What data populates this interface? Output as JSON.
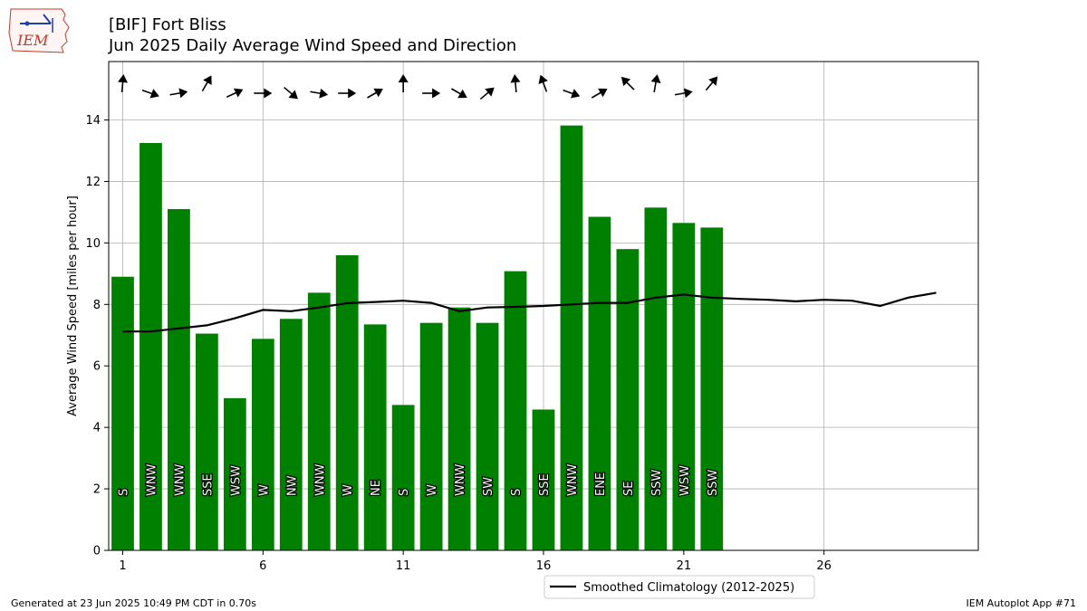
{
  "logo": {
    "text": "IEM",
    "icon": "iem-iowa-state-logo-icon"
  },
  "header": {
    "title": "[BIF] Fort Bliss",
    "subtitle": "Jun 2025 Daily Average Wind Speed and Direction"
  },
  "footer": {
    "left": "Generated at 23 Jun 2025 10:49 PM CDT in 0.70s",
    "right": "IEM Autoplot App #71"
  },
  "colors": {
    "bars": "#008000",
    "climatology_line": "#000000",
    "grid": "#b0b0b0",
    "arrows": "#000000"
  },
  "chart_data": {
    "type": "bar",
    "x": [
      1,
      2,
      3,
      4,
      5,
      6,
      7,
      8,
      9,
      10,
      11,
      12,
      13,
      14,
      15,
      16,
      17,
      18,
      19,
      20,
      21,
      22
    ],
    "values": [
      8.9,
      13.25,
      11.1,
      7.05,
      4.95,
      6.88,
      7.53,
      8.38,
      9.6,
      7.35,
      4.73,
      7.4,
      7.9,
      7.4,
      9.08,
      4.58,
      13.82,
      10.85,
      9.8,
      11.15,
      10.65,
      10.5
    ],
    "directions": [
      "S",
      "WNW",
      "WNW",
      "SSE",
      "WSW",
      "W",
      "NW",
      "WNW",
      "W",
      "NE",
      "S",
      "W",
      "WNW",
      "SW",
      "S",
      "SSE",
      "WNW",
      "ENE",
      "SE",
      "SSW",
      "WSW",
      "SSW"
    ],
    "arrow_angles_deg": [
      -85,
      20,
      -10,
      -60,
      -25,
      0,
      40,
      10,
      0,
      -30,
      -90,
      0,
      30,
      -40,
      -95,
      -110,
      20,
      -30,
      -135,
      -80,
      -10,
      -50
    ],
    "series": [
      {
        "name": "Smoothed Climatology (2012-2025)",
        "type": "line",
        "x": [
          1,
          2,
          3,
          4,
          5,
          6,
          7,
          8,
          9,
          10,
          11,
          12,
          13,
          14,
          15,
          16,
          17,
          18,
          19,
          20,
          21,
          22,
          23,
          24,
          25,
          26,
          27,
          28,
          29,
          30
        ],
        "values": [
          7.12,
          7.12,
          7.22,
          7.32,
          7.55,
          7.82,
          7.78,
          7.9,
          8.04,
          8.08,
          8.12,
          8.05,
          7.78,
          7.9,
          7.92,
          7.95,
          8.0,
          8.05,
          8.05,
          8.22,
          8.32,
          8.22,
          8.18,
          8.15,
          8.1,
          8.15,
          8.12,
          7.95,
          8.22,
          8.38
        ]
      }
    ],
    "xticks": [
      1,
      6,
      11,
      16,
      21,
      26
    ],
    "yticks": [
      0,
      2,
      4,
      6,
      8,
      10,
      12,
      14
    ],
    "xlim": [
      0.5,
      31.5
    ],
    "ylim": [
      0,
      15.9
    ],
    "ylabel": "Average Wind Speed [miles per hour]",
    "xlabel": "",
    "grid": true,
    "legend_placement": "bottom-center"
  }
}
